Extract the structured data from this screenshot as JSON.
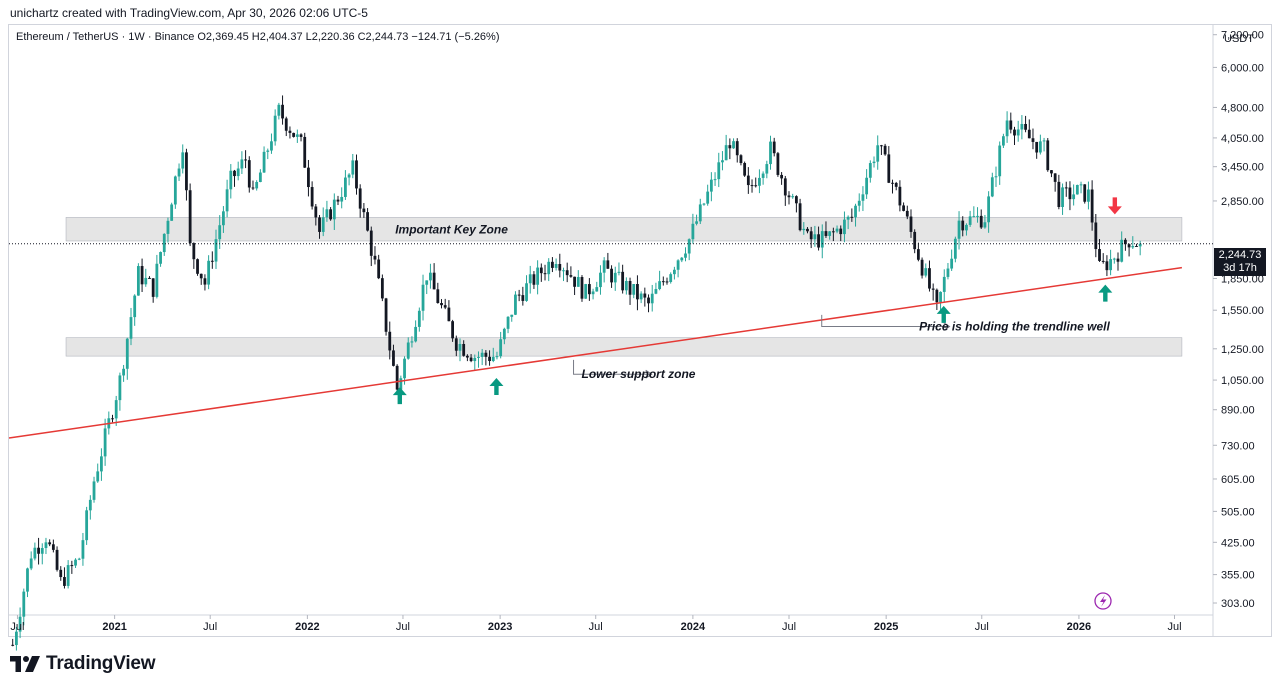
{
  "caption": "unichartz created with TradingView.com, Apr 30, 2026 02:06 UTC-5",
  "legend": "Ethereum / TetherUS · 1W · Binance  O2,369.45  H2,404.37  L2,220.36  C2,244.73  −124.71 (−5.26%)",
  "price_tag": {
    "price": "2,244.73",
    "countdown": "3d 17h"
  },
  "brand": {
    "name": "TradingView",
    "icon": "tradingview-logo-icon"
  },
  "colors": {
    "up": "#26a69a",
    "down": "#131722",
    "trend": "#e53935",
    "zone_fill": "#e0e0e0",
    "arrow_up": "#089981",
    "arrow_down": "#f23645",
    "badge": "#9c27b0"
  },
  "chart_data": {
    "type": "candlestick",
    "title": "Ethereum / TetherUS · 1W · Binance",
    "yaxis": {
      "unit_label": "USDT",
      "scale": "log",
      "ticks": [
        "7,200.00",
        "6,000.00",
        "4,800.00",
        "4,050.00",
        "3,450.00",
        "2,850.00",
        "1,850.00",
        "1,550.00",
        "1,250.00",
        "1,050.00",
        "890.00",
        "730.00",
        "605.00",
        "505.00",
        "425.00",
        "355.00",
        "303.00"
      ],
      "range": [
        285,
        7600
      ]
    },
    "xaxis": {
      "ticks": [
        "Jul",
        "2021",
        "Jul",
        "2022",
        "Jul",
        "2023",
        "Jul",
        "2024",
        "Jul",
        "2025",
        "Jul",
        "2026",
        "Jul"
      ],
      "range": [
        "2020-06-15",
        "2026-09-10"
      ]
    },
    "current_price": 2244.73,
    "zones": [
      {
        "label": "Important Key Zone",
        "low": 2280,
        "high": 2600,
        "from": "2020-10-01",
        "to": "2026-07-15"
      },
      {
        "label": "",
        "low": 1200,
        "high": 1330,
        "from": "2020-10-01",
        "to": "2026-07-15"
      }
    ],
    "trendline": {
      "from": {
        "date": "2020-06-15",
        "price": 760
      },
      "to": {
        "date": "2026-07-15",
        "price": 1965
      }
    },
    "annotations": [
      {
        "text": "Important Key Zone",
        "date": "2022-10-01",
        "price": 2430
      },
      {
        "text": "Price is holding the trendline well",
        "date": "2025-09-01",
        "price": 1415
      },
      {
        "text": "Lower support zone",
        "date": "2023-09-20",
        "price": 1085
      }
    ],
    "annotation_arrows": [
      {
        "from": {
          "date": "2024-09-01",
          "price": 1510
        },
        "corner": {
          "date": "2024-09-01",
          "price": 1415
        },
        "to": {
          "date": "2025-05-01",
          "price": 1415
        }
      },
      {
        "from": {
          "date": "2023-05-20",
          "price": 1175
        },
        "corner": {
          "date": "2023-05-20",
          "price": 1085
        },
        "to": {
          "date": "2023-10-15",
          "price": 1085
        }
      }
    ],
    "markers": [
      {
        "type": "up",
        "date": "2022-06-25",
        "price": 960
      },
      {
        "type": "up",
        "date": "2022-12-25",
        "price": 1010
      },
      {
        "type": "up",
        "date": "2025-04-20",
        "price": 1510
      },
      {
        "type": "up",
        "date": "2026-02-20",
        "price": 1700
      },
      {
        "type": "down",
        "date": "2026-03-10",
        "price": 2780
      }
    ],
    "waypoints": [
      [
        "2020-06-22",
        240
      ],
      [
        "2020-07-27",
        400
      ],
      [
        "2020-08-24",
        440
      ],
      [
        "2020-09-21",
        340
      ],
      [
        "2020-10-26",
        390
      ],
      [
        "2020-11-23",
        600
      ],
      [
        "2021-01-11",
        1050
      ],
      [
        "2021-02-15",
        1900
      ],
      [
        "2021-03-15",
        1750
      ],
      [
        "2021-05-10",
        3950
      ],
      [
        "2021-05-24",
        2200
      ],
      [
        "2021-06-21",
        1800
      ],
      [
        "2021-08-09",
        3200
      ],
      [
        "2021-09-06",
        3600
      ],
      [
        "2021-09-20",
        2900
      ],
      [
        "2021-11-08",
        4700
      ],
      [
        "2021-12-20",
        3900
      ],
      [
        "2022-01-24",
        2400
      ],
      [
        "2022-03-28",
        3400
      ],
      [
        "2022-05-09",
        2000
      ],
      [
        "2022-06-20",
        1000
      ],
      [
        "2022-08-15",
        1900
      ],
      [
        "2022-10-10",
        1300
      ],
      [
        "2022-11-14",
        1200
      ],
      [
        "2022-12-26",
        1200
      ],
      [
        "2023-01-30",
        1650
      ],
      [
        "2023-04-17",
        2100
      ],
      [
        "2023-06-12",
        1700
      ],
      [
        "2023-07-17",
        1950
      ],
      [
        "2023-10-09",
        1600
      ],
      [
        "2023-12-25",
        2300
      ],
      [
        "2024-03-11",
        4000
      ],
      [
        "2024-04-15",
        3000
      ],
      [
        "2024-05-27",
        3800
      ],
      [
        "2024-08-05",
        2300
      ],
      [
        "2024-09-09",
        2300
      ],
      [
        "2024-10-28",
        2600
      ],
      [
        "2024-12-16",
        3900
      ],
      [
        "2025-02-03",
        2700
      ],
      [
        "2025-04-07",
        1550
      ],
      [
        "2025-05-19",
        2550
      ],
      [
        "2025-07-07",
        2600
      ],
      [
        "2025-08-18",
        4500
      ],
      [
        "2025-09-22",
        4100
      ],
      [
        "2025-10-27",
        3800
      ],
      [
        "2025-11-24",
        2900
      ],
      [
        "2025-12-29",
        3000
      ],
      [
        "2026-01-19",
        2950
      ],
      [
        "2026-02-09",
        1950
      ],
      [
        "2026-03-02",
        2050
      ],
      [
        "2026-04-06",
        2300
      ],
      [
        "2026-04-27",
        2245
      ]
    ]
  }
}
